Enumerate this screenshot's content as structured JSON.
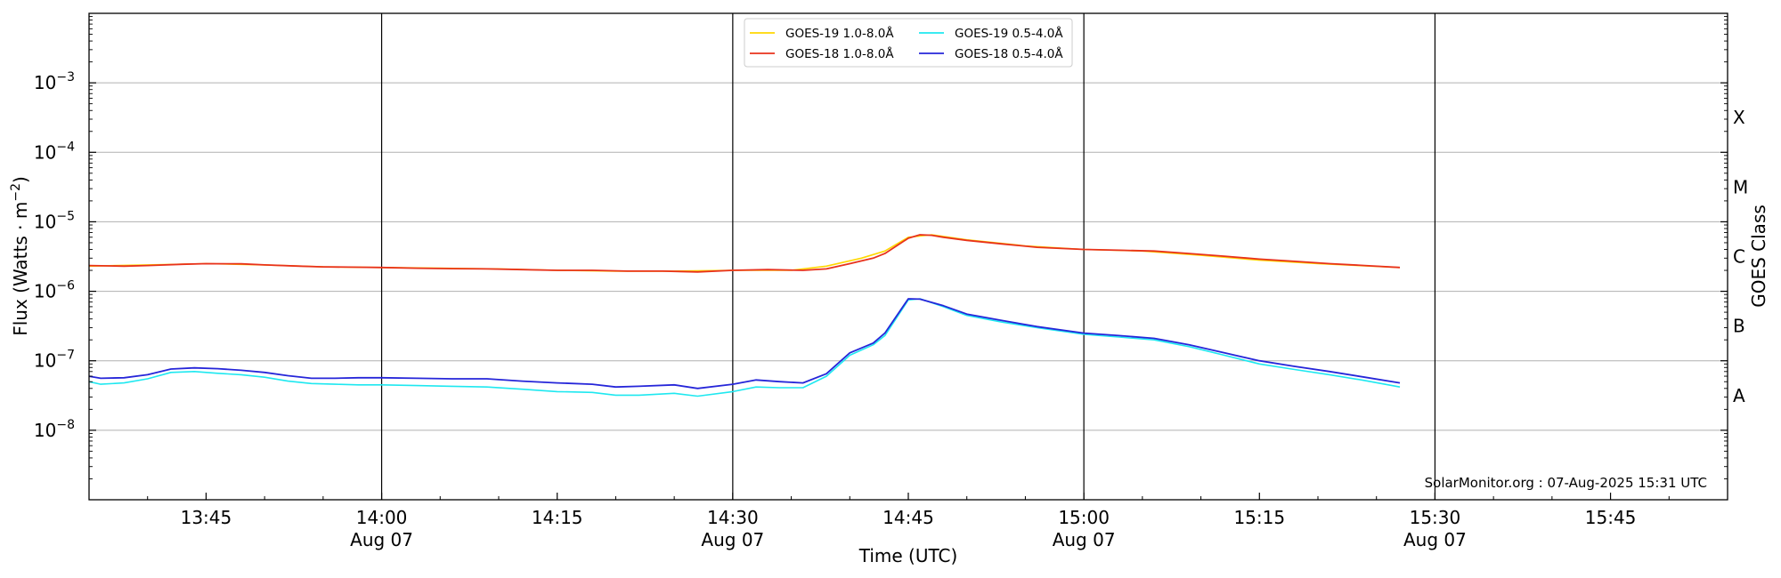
{
  "chart_data": {
    "type": "line",
    "xlabel": "Time (UTC)",
    "ylabel": "Flux (Watts · m",
    "ylabel_exponent": "−2",
    "ylabel_close": ")",
    "y2label": "GOES Class",
    "x_range": [
      "13:35",
      "15:55"
    ],
    "y_range": [
      1e-09,
      0.01
    ],
    "y_scale": "log",
    "grid": "y-major",
    "legend_position": "top-center",
    "x_ticks": [
      {
        "time": "13:45",
        "label": "13:45",
        "sub": ""
      },
      {
        "time": "14:00",
        "label": "14:00",
        "sub": "Aug 07"
      },
      {
        "time": "14:15",
        "label": "14:15",
        "sub": ""
      },
      {
        "time": "14:30",
        "label": "14:30",
        "sub": "Aug 07"
      },
      {
        "time": "14:45",
        "label": "14:45",
        "sub": ""
      },
      {
        "time": "15:00",
        "label": "15:00",
        "sub": "Aug 07"
      },
      {
        "time": "15:15",
        "label": "15:15",
        "sub": ""
      },
      {
        "time": "15:30",
        "label": "15:30",
        "sub": "Aug 07"
      },
      {
        "time": "15:45",
        "label": "15:45",
        "sub": ""
      }
    ],
    "y_ticks": [
      {
        "exp": -8,
        "base": "10",
        "sup": "−8"
      },
      {
        "exp": -7,
        "base": "10",
        "sup": "−7"
      },
      {
        "exp": -6,
        "base": "10",
        "sup": "−6"
      },
      {
        "exp": -5,
        "base": "10",
        "sup": "−5"
      },
      {
        "exp": -4,
        "base": "10",
        "sup": "−4"
      },
      {
        "exp": -3,
        "base": "10",
        "sup": "−3"
      }
    ],
    "class_labels": [
      {
        "label": "A",
        "exp": -7.5
      },
      {
        "label": "B",
        "exp": -6.5
      },
      {
        "label": "C",
        "exp": -5.5
      },
      {
        "label": "M",
        "exp": -4.5
      },
      {
        "label": "X",
        "exp": -3.5
      }
    ],
    "vlines": [
      "14:00",
      "14:30",
      "15:00",
      "15:30"
    ],
    "legend": [
      {
        "label": "GOES-19 1.0-8.0Å",
        "color": "#ffd700"
      },
      {
        "label": "GOES-18 1.0-8.0Å",
        "color": "#e8321c"
      },
      {
        "label": "GOES-19 0.5-4.0Å",
        "color": "#1ee8f0"
      },
      {
        "label": "GOES-18 0.5-4.0Å",
        "color": "#2626d9"
      }
    ],
    "series": [
      {
        "name": "GOES-19 1.0-8.0Å",
        "color": "#ffd700",
        "x": [
          "13:35",
          "13:40",
          "13:45",
          "13:50",
          "13:55",
          "14:00",
          "14:05",
          "14:10",
          "14:15",
          "14:20",
          "14:25",
          "14:30",
          "14:35",
          "14:38",
          "14:41",
          "14:43",
          "14:45",
          "14:47",
          "14:50",
          "14:55",
          "15:00",
          "15:05",
          "15:10",
          "15:15",
          "15:20",
          "15:27"
        ],
        "y": [
          2.3e-06,
          2.4e-06,
          2.5e-06,
          2.4e-06,
          2.25e-06,
          2.2e-06,
          2.15e-06,
          2.1e-06,
          2e-06,
          1.95e-06,
          1.95e-06,
          2e-06,
          2e-06,
          2.3e-06,
          3e-06,
          3.8e-06,
          6e-06,
          6.5e-06,
          5.5e-06,
          4.5e-06,
          4e-06,
          3.8e-06,
          3.3e-06,
          2.8e-06,
          2.5e-06,
          2.2e-06
        ]
      },
      {
        "name": "GOES-18 1.0-8.0Å",
        "color": "#e8321c",
        "x": [
          "13:35",
          "13:38",
          "13:40",
          "13:43",
          "13:45",
          "13:48",
          "13:50",
          "13:53",
          "13:55",
          "13:58",
          "14:00",
          "14:03",
          "14:06",
          "14:09",
          "14:12",
          "14:15",
          "14:18",
          "14:21",
          "14:24",
          "14:27",
          "14:30",
          "14:33",
          "14:36",
          "14:38",
          "14:40",
          "14:42",
          "14:43",
          "14:45",
          "14:46",
          "14:47",
          "14:48",
          "14:50",
          "14:53",
          "14:56",
          "15:00",
          "15:03",
          "15:06",
          "15:09",
          "15:12",
          "15:15",
          "15:18",
          "15:21",
          "15:24",
          "15:27"
        ],
        "y": [
          2.35e-06,
          2.3e-06,
          2.35e-06,
          2.45e-06,
          2.5e-06,
          2.48e-06,
          2.4e-06,
          2.3e-06,
          2.25e-06,
          2.22e-06,
          2.2e-06,
          2.15e-06,
          2.12e-06,
          2.1e-06,
          2.05e-06,
          2e-06,
          2e-06,
          1.95e-06,
          1.95e-06,
          1.9e-06,
          2e-06,
          2.05e-06,
          2e-06,
          2.1e-06,
          2.5e-06,
          3e-06,
          3.5e-06,
          5.8e-06,
          6.5e-06,
          6.4e-06,
          6e-06,
          5.4e-06,
          4.8e-06,
          4.3e-06,
          4e-06,
          3.9e-06,
          3.8e-06,
          3.5e-06,
          3.2e-06,
          2.9e-06,
          2.7e-06,
          2.5e-06,
          2.35e-06,
          2.2e-06
        ]
      },
      {
        "name": "GOES-19 0.5-4.0Å",
        "color": "#1ee8f0",
        "x": [
          "13:35",
          "13:36",
          "13:38",
          "13:40",
          "13:42",
          "13:44",
          "13:46",
          "13:48",
          "13:50",
          "13:52",
          "13:54",
          "13:56",
          "13:58",
          "14:00",
          "14:03",
          "14:06",
          "14:09",
          "14:12",
          "14:15",
          "14:18",
          "14:20",
          "14:22",
          "14:25",
          "14:27",
          "14:30",
          "14:32",
          "14:34",
          "14:36",
          "14:38",
          "14:40",
          "14:42",
          "14:43",
          "14:45",
          "14:46",
          "14:48",
          "14:50",
          "14:53",
          "14:56",
          "15:00",
          "15:03",
          "15:06",
          "15:09",
          "15:12",
          "15:15",
          "15:18",
          "15:21",
          "15:24",
          "15:27"
        ],
        "y": [
          5e-08,
          4.6e-08,
          4.8e-08,
          5.5e-08,
          6.8e-08,
          7e-08,
          6.6e-08,
          6.3e-08,
          5.8e-08,
          5.1e-08,
          4.7e-08,
          4.6e-08,
          4.5e-08,
          4.5e-08,
          4.4e-08,
          4.3e-08,
          4.2e-08,
          3.9e-08,
          3.6e-08,
          3.5e-08,
          3.2e-08,
          3.2e-08,
          3.4e-08,
          3.1e-08,
          3.6e-08,
          4.2e-08,
          4.1e-08,
          4.1e-08,
          6e-08,
          1.2e-07,
          1.7e-07,
          2.3e-07,
          7.5e-07,
          7.8e-07,
          6e-07,
          4.5e-07,
          3.6e-07,
          3e-07,
          2.4e-07,
          2.2e-07,
          2e-07,
          1.6e-07,
          1.2e-07,
          9e-08,
          7.5e-08,
          6.3e-08,
          5.2e-08,
          4.2e-08
        ]
      },
      {
        "name": "GOES-18 0.5-4.0Å",
        "color": "#2626d9",
        "x": [
          "13:35",
          "13:36",
          "13:38",
          "13:40",
          "13:42",
          "13:44",
          "13:46",
          "13:48",
          "13:50",
          "13:52",
          "13:54",
          "13:56",
          "13:58",
          "14:00",
          "14:03",
          "14:06",
          "14:09",
          "14:12",
          "14:15",
          "14:18",
          "14:20",
          "14:22",
          "14:25",
          "14:27",
          "14:30",
          "14:32",
          "14:34",
          "14:36",
          "14:38",
          "14:40",
          "14:42",
          "14:43",
          "14:45",
          "14:46",
          "14:48",
          "14:50",
          "14:53",
          "14:56",
          "15:00",
          "15:03",
          "15:06",
          "15:09",
          "15:12",
          "15:15",
          "15:18",
          "15:21",
          "15:24",
          "15:27"
        ],
        "y": [
          6e-08,
          5.6e-08,
          5.7e-08,
          6.3e-08,
          7.6e-08,
          7.9e-08,
          7.7e-08,
          7.3e-08,
          6.8e-08,
          6.1e-08,
          5.6e-08,
          5.6e-08,
          5.7e-08,
          5.7e-08,
          5.6e-08,
          5.5e-08,
          5.5e-08,
          5.1e-08,
          4.8e-08,
          4.6e-08,
          4.2e-08,
          4.3e-08,
          4.5e-08,
          4e-08,
          4.6e-08,
          5.3e-08,
          5e-08,
          4.8e-08,
          6.5e-08,
          1.3e-07,
          1.8e-07,
          2.5e-07,
          7.8e-07,
          7.7e-07,
          6.2e-07,
          4.7e-07,
          3.8e-07,
          3.1e-07,
          2.5e-07,
          2.3e-07,
          2.1e-07,
          1.7e-07,
          1.3e-07,
          1e-07,
          8.3e-08,
          7e-08,
          5.8e-08,
          4.8e-08
        ]
      }
    ]
  },
  "watermark": "SolarMonitor.org : 07-Aug-2025 15:31 UTC"
}
